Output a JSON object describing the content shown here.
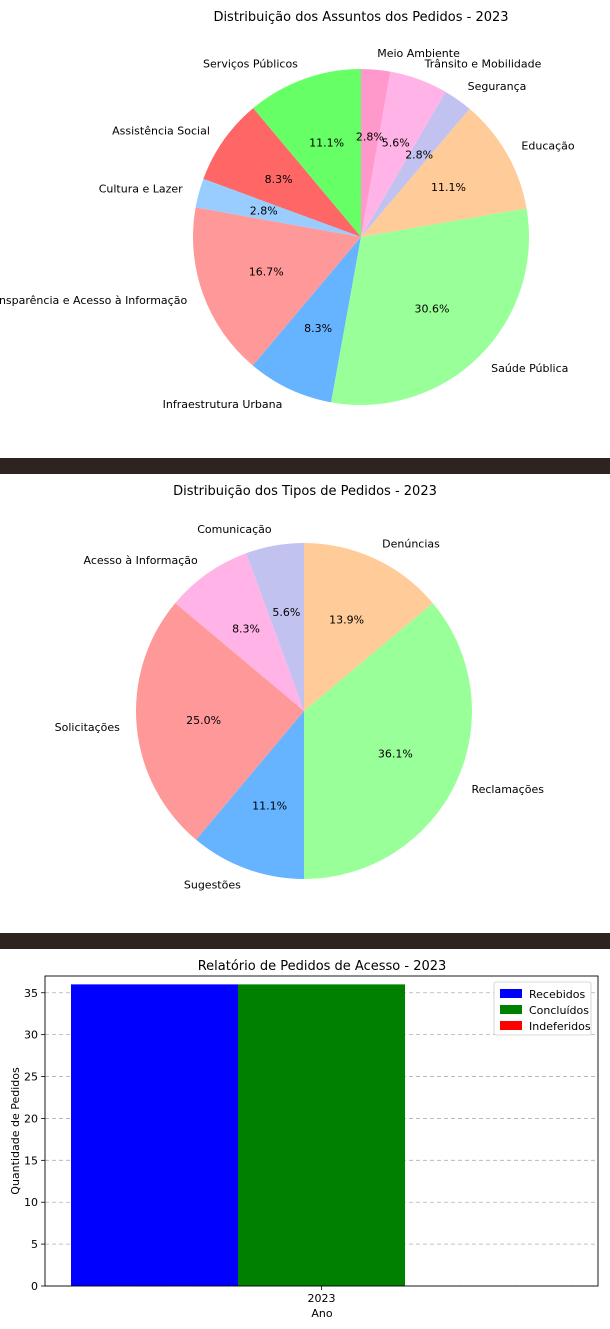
{
  "chart_data": [
    {
      "type": "pie",
      "title": "Distribuição dos Assuntos dos Pedidos - 2023",
      "start_angle_deg": 90,
      "direction": "counterclockwise",
      "slices": [
        {
          "label": "Serviços Públicos",
          "value": 11.1,
          "pct_label": "11.1%",
          "color": "#66ff66"
        },
        {
          "label": "Assistência Social",
          "value": 8.3,
          "pct_label": "8.3%",
          "color": "#ff6666"
        },
        {
          "label": "Cultura e Lazer",
          "value": 2.8,
          "pct_label": "2.8%",
          "color": "#99ccff"
        },
        {
          "label": "Transparência e Acesso à Informação",
          "value": 16.7,
          "pct_label": "16.7%",
          "color": "#ff9999"
        },
        {
          "label": "Infraestrutura Urbana",
          "value": 8.3,
          "pct_label": "8.3%",
          "color": "#66b3ff"
        },
        {
          "label": "Saúde Pública",
          "value": 30.6,
          "pct_label": "30.6%",
          "color": "#99ff99"
        },
        {
          "label": "Educação",
          "value": 11.1,
          "pct_label": "11.1%",
          "color": "#ffcc99"
        },
        {
          "label": "Segurança",
          "value": 2.8,
          "pct_label": "2.8%",
          "color": "#c2c2f0"
        },
        {
          "label": "Trânsito e Mobilidade",
          "value": 5.6,
          "pct_label": "5.6%",
          "color": "#ffb3e6"
        },
        {
          "label": "Meio Ambiente",
          "value": 2.8,
          "pct_label": "2.8%",
          "color": "#ff99cc"
        }
      ]
    },
    {
      "type": "pie",
      "title": "Distribuição dos Tipos de Pedidos - 2023",
      "start_angle_deg": 90,
      "direction": "counterclockwise",
      "slices": [
        {
          "label": "Comunicação",
          "value": 5.6,
          "pct_label": "5.6%",
          "color": "#c2c2f0"
        },
        {
          "label": "Acesso à Informação",
          "value": 8.3,
          "pct_label": "8.3%",
          "color": "#ffb3e6"
        },
        {
          "label": "Solicitações",
          "value": 25.0,
          "pct_label": "25.0%",
          "color": "#ff9999"
        },
        {
          "label": "Sugestões",
          "value": 11.1,
          "pct_label": "11.1%",
          "color": "#66b3ff"
        },
        {
          "label": "Reclamações",
          "value": 36.1,
          "pct_label": "36.1%",
          "color": "#99ff99"
        },
        {
          "label": "Denúncias",
          "value": 13.9,
          "pct_label": "13.9%",
          "color": "#ffcc99"
        }
      ]
    },
    {
      "type": "bar",
      "title": "Relatório de Pedidos de Acesso - 2023",
      "xlabel": "Ano",
      "ylabel": "Quantidade de Pedidos",
      "categories": [
        "2023"
      ],
      "ylim": [
        0,
        37
      ],
      "yticks": [
        0,
        5,
        10,
        15,
        20,
        25,
        30,
        35
      ],
      "grid": "y-dashed",
      "legend_position": "top-right",
      "series": [
        {
          "name": "Recebidos",
          "values": [
            36
          ],
          "color": "#0000ff"
        },
        {
          "name": "Concluídos",
          "values": [
            36
          ],
          "color": "#008000"
        },
        {
          "name": "Indeferidos",
          "values": [
            0
          ],
          "color": "#ff0000"
        }
      ]
    }
  ]
}
